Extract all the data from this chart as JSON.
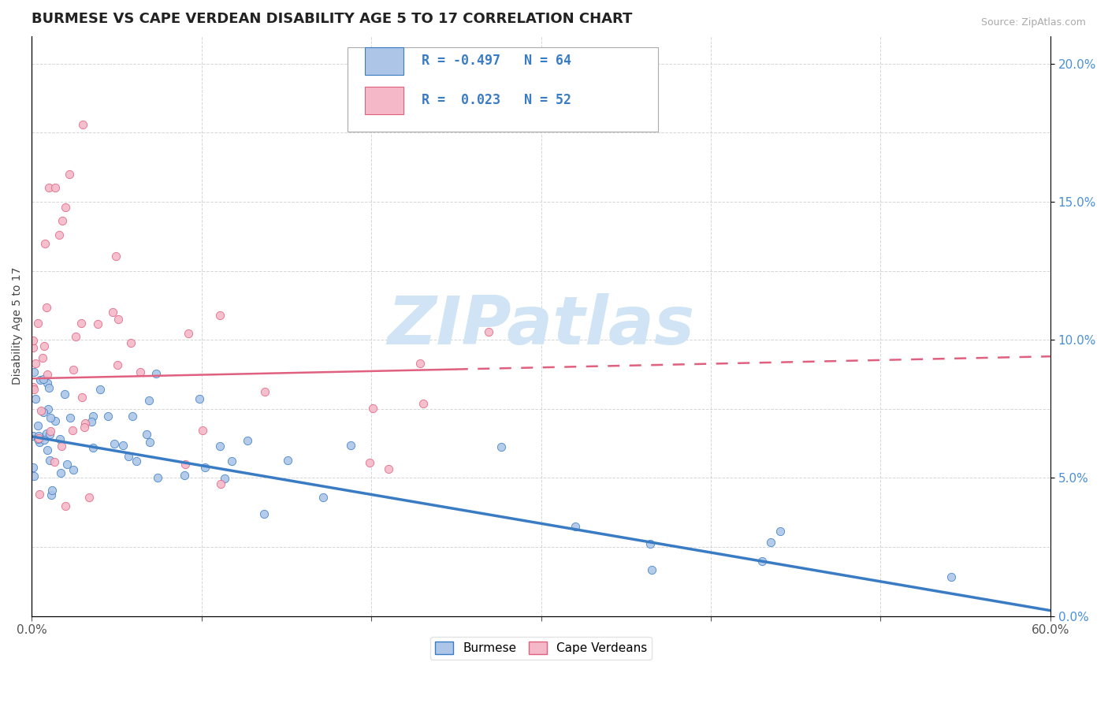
{
  "title": "BURMESE VS CAPE VERDEAN DISABILITY AGE 5 TO 17 CORRELATION CHART",
  "source": "Source: ZipAtlas.com",
  "ylabel": "Disability Age 5 to 17",
  "legend_labels": [
    "Burmese",
    "Cape Verdeans"
  ],
  "burmese_color": "#adc6e8",
  "capeverdean_color": "#f5b8c8",
  "burmese_line_color": "#3a7cc4",
  "capeverdean_line_color": "#e06080",
  "watermark_color": "#d0e4f5",
  "xmin": 0.0,
  "xmax": 0.6,
  "ymin": 0.0,
  "ymax": 0.21,
  "grid_color": "#cccccc",
  "background_color": "#ffffff",
  "title_fontsize": 13,
  "axis_label_fontsize": 10,
  "tick_fontsize": 11,
  "legend_fontsize": 11,
  "right_tick_color": "#4a90d9",
  "burmese_trend_start_y": 0.065,
  "burmese_trend_end_y": 0.002,
  "cv_trend_start_y": 0.086,
  "cv_trend_end_y": 0.094
}
